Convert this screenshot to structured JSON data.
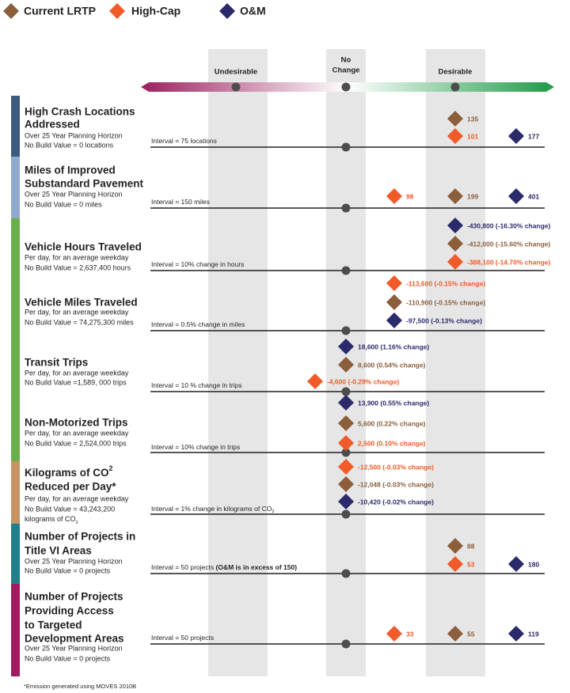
{
  "legend": [
    {
      "name": "Current LRTP",
      "color": "#8b5e3c"
    },
    {
      "name": "High-Cap",
      "color": "#f15a29"
    },
    {
      "name": "O&M",
      "color": "#2b2a6b"
    }
  ],
  "scale": {
    "undesirable": "Undesirable",
    "no_change": [
      "No",
      "Change"
    ],
    "desirable": "Desirable"
  },
  "rows": [
    {
      "color": "#3b5a7f",
      "title": [
        "High Crash Locations",
        "Addressed"
      ],
      "subtitle": [
        "Over 25 Year Planning Horizon",
        "No Build Value = 0 locations"
      ],
      "interval": [
        {
          "text": "Interval = 75 locations"
        }
      ],
      "markers": [
        {
          "series": 0,
          "label": "135"
        },
        {
          "series": 1,
          "label": "101"
        },
        {
          "series": 2,
          "label": "177"
        }
      ]
    },
    {
      "color": "#8fa9cf",
      "title": [
        "Miles of Improved",
        "Substandard Pavement"
      ],
      "subtitle": [
        "Over 25 Year Planning Horizon",
        "No Build Value = 0 miles"
      ],
      "interval": [
        {
          "text": "Interval = 150 miles"
        }
      ],
      "markers": [
        {
          "series": 1,
          "label": "98"
        },
        {
          "series": 0,
          "label": "199"
        },
        {
          "series": 2,
          "label": "401"
        }
      ]
    },
    {
      "color": "#6aaf4a",
      "title": [
        "Vehicle Hours Traveled"
      ],
      "subtitle": [
        "Per day, for an average weekday",
        "No Build Value = 2,637,400 hours"
      ],
      "interval": [
        {
          "text": "Interval =  10% change in hours"
        }
      ],
      "markers": [
        {
          "series": 2,
          "label": "-430,800 (-16.30% change)"
        },
        {
          "series": 0,
          "label": "-412,000 (-15.60% change)"
        },
        {
          "series": 1,
          "label": "-388,100 (-14.70% change)"
        }
      ]
    },
    {
      "color": "#6aaf4a",
      "title": [
        "Vehicle Miles Traveled"
      ],
      "subtitle": [
        "Per day, for an average weekday",
        "No Build Value = 74,275,300 miles"
      ],
      "interval": [
        {
          "text": "Interval =  0.5% change in miles"
        }
      ],
      "markers": [
        {
          "series": 1,
          "label": "-113,600 (-0.15% change)"
        },
        {
          "series": 0,
          "label": "-110,900 (-0.15% change)"
        },
        {
          "series": 2,
          "label": "-97,500 (-0.13% change)"
        }
      ]
    },
    {
      "color": "#6aaf4a",
      "title": [
        "Transit Trips"
      ],
      "subtitle": [
        "Per day, for an average weekday",
        "No Build Value =1,589, 000 trips"
      ],
      "interval": [
        {
          "text": "Interval =  10 % change in trips"
        }
      ],
      "markers": [
        {
          "series": 2,
          "label": "18,600 (1.16% change)"
        },
        {
          "series": 0,
          "label": "8,600 (0.54% change)"
        },
        {
          "series": 1,
          "label": "-4,600 (-0.29%  change)"
        }
      ]
    },
    {
      "color": "#6aaf4a",
      "title": [
        "Non-Motorized Trips"
      ],
      "subtitle": [
        "Per day, for an average weekday",
        "No Build Value = 2,524,000 trips"
      ],
      "interval": [
        {
          "text": "Interval =  10% change in trips"
        }
      ],
      "markers": [
        {
          "series": 2,
          "label": "13,900 (0.55% change)"
        },
        {
          "series": 0,
          "label": "5,600 (0.22% change)"
        },
        {
          "series": 1,
          "label": "2,500 (0.10% change)"
        }
      ]
    },
    {
      "color": "#c79365",
      "title": [
        [
          {
            "text": "Kilograms of CO"
          },
          {
            "text": "2",
            "style": "sup"
          }
        ],
        "Reduced per Day*"
      ],
      "subtitle": [
        "Per day, for an average weekday",
        "No Build Value = 43,243,200",
        [
          {
            "text": "kilograms of CO"
          },
          {
            "text": "2",
            "style": "sub"
          }
        ]
      ],
      "interval": [
        {
          "text": "Interval =  1% change in kilograms of CO"
        },
        {
          "text": "2",
          "style": "sub"
        }
      ],
      "markers": [
        {
          "series": 1,
          "label": "-12,500 (-0.03% change)"
        },
        {
          "series": 0,
          "label": "-12,048 (-0.03% change)"
        },
        {
          "series": 2,
          "label": "-10,420 (-0.02% change)"
        }
      ]
    },
    {
      "color": "#1f7f8a",
      "title": [
        "Number of Projects in",
        "Title VI Areas"
      ],
      "subtitle": [
        "Over 25 Year Planning Horizon",
        "No Build Value = 0 projects"
      ],
      "interval": [
        {
          "text": "Interval = 50 projects "
        },
        {
          "text": "(O&M is in excess of 150)",
          "style": "bold"
        }
      ],
      "markers": [
        {
          "series": 0,
          "label": "88"
        },
        {
          "series": 1,
          "label": "53"
        },
        {
          "series": 2,
          "label": "180"
        }
      ]
    },
    {
      "color": "#a01c5f",
      "title": [
        "Number of Projects",
        "Providing Access",
        "to Targeted",
        "Development Areas"
      ],
      "subtitle": [
        "Over 25 Year Planning Horizon",
        "No Build Value = 0 projects"
      ],
      "interval": [
        {
          "text": "Interval = 50 projects"
        }
      ],
      "markers": [
        {
          "series": 1,
          "label": "33"
        },
        {
          "series": 0,
          "label": "55"
        },
        {
          "series": 2,
          "label": "119"
        }
      ]
    }
  ],
  "footnote": "*Emission generated using MOVES 2010B"
}
